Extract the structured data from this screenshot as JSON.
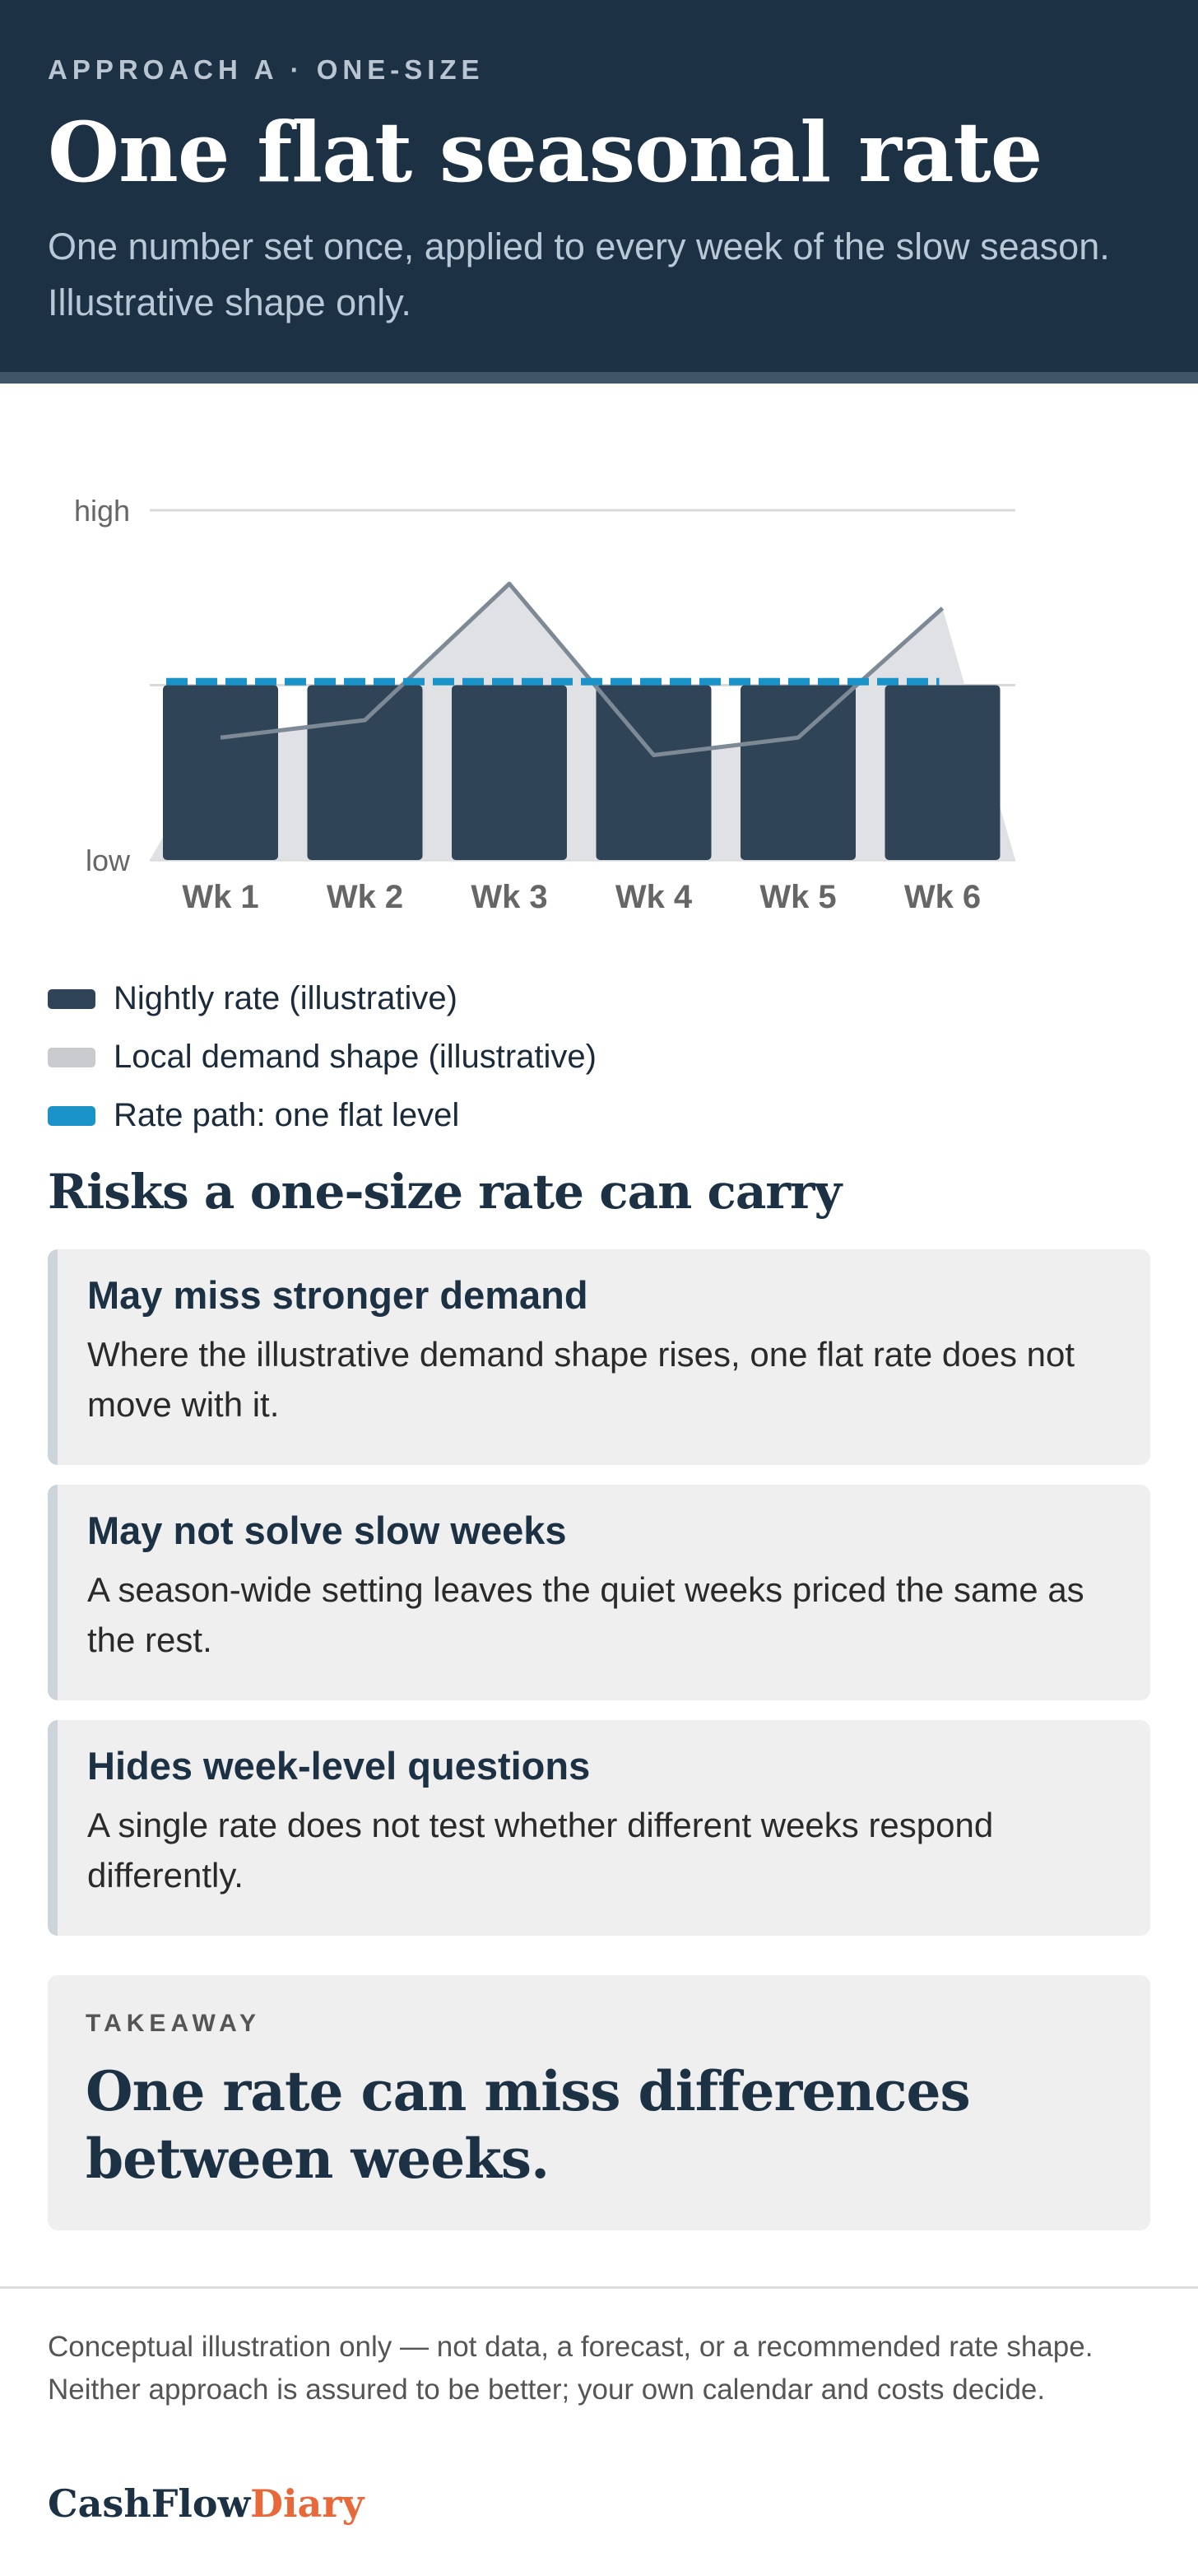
{
  "header": {
    "eyebrow": "APPROACH A · ONE-SIZE",
    "title": "One flat seasonal rate",
    "subtitle": "One number set once, applied to every week of the slow season. Illustrative shape only."
  },
  "chart_data": {
    "type": "bar",
    "categories": [
      "Wk 1",
      "Wk 2",
      "Wk 3",
      "Wk 4",
      "Wk 5",
      "Wk 6"
    ],
    "y_tick_labels": {
      "high": "high",
      "low": "low"
    },
    "ylim": [
      0,
      100
    ],
    "grid": true,
    "series": [
      {
        "name": "Nightly rate (illustrative)",
        "type": "bar",
        "values": [
          50,
          50,
          50,
          50,
          50,
          50
        ]
      },
      {
        "name": "Local demand shape (illustrative)",
        "type": "area",
        "values": [
          35,
          40,
          79,
          30,
          35,
          72
        ]
      },
      {
        "name": "Rate path: one flat level",
        "type": "dashed-line",
        "values": [
          51,
          51,
          51,
          51,
          51,
          51
        ]
      }
    ],
    "colors": {
      "bars": "#2f4457",
      "demand_fill": "#dfe1e4",
      "demand_line": "#7d8a95",
      "rate_path": "#1a93c8",
      "gridline": "#d9d9d9",
      "tick_label": "#666666"
    }
  },
  "legend": {
    "items": [
      {
        "label": "Nightly rate (illustrative)",
        "color": "#2f4457"
      },
      {
        "label": "Local demand shape (illustrative)",
        "color": "#c9cbcf"
      },
      {
        "label": "Rate path: one flat level",
        "color": "#1a93c8"
      }
    ]
  },
  "risks": {
    "title": "Risks a one-size rate can carry",
    "items": [
      {
        "title": "May miss stronger demand",
        "text": "Where the illustrative demand shape rises, one flat rate does not move with it."
      },
      {
        "title": "May not solve slow weeks",
        "text": "A season-wide setting leaves the quiet weeks priced the same as the rest."
      },
      {
        "title": "Hides week-level questions",
        "text": "A single rate does not test whether different weeks respond differently."
      }
    ]
  },
  "takeaway": {
    "label": "TAKEAWAY",
    "text": "One rate can miss differences between weeks."
  },
  "footer": {
    "note": "Conceptual illustration only — not data, a forecast, or a recommended rate shape. Neither approach is assured to be better; your own calendar and costs decide.",
    "brand_main": "CashFlow",
    "brand_accent": "Diary"
  }
}
